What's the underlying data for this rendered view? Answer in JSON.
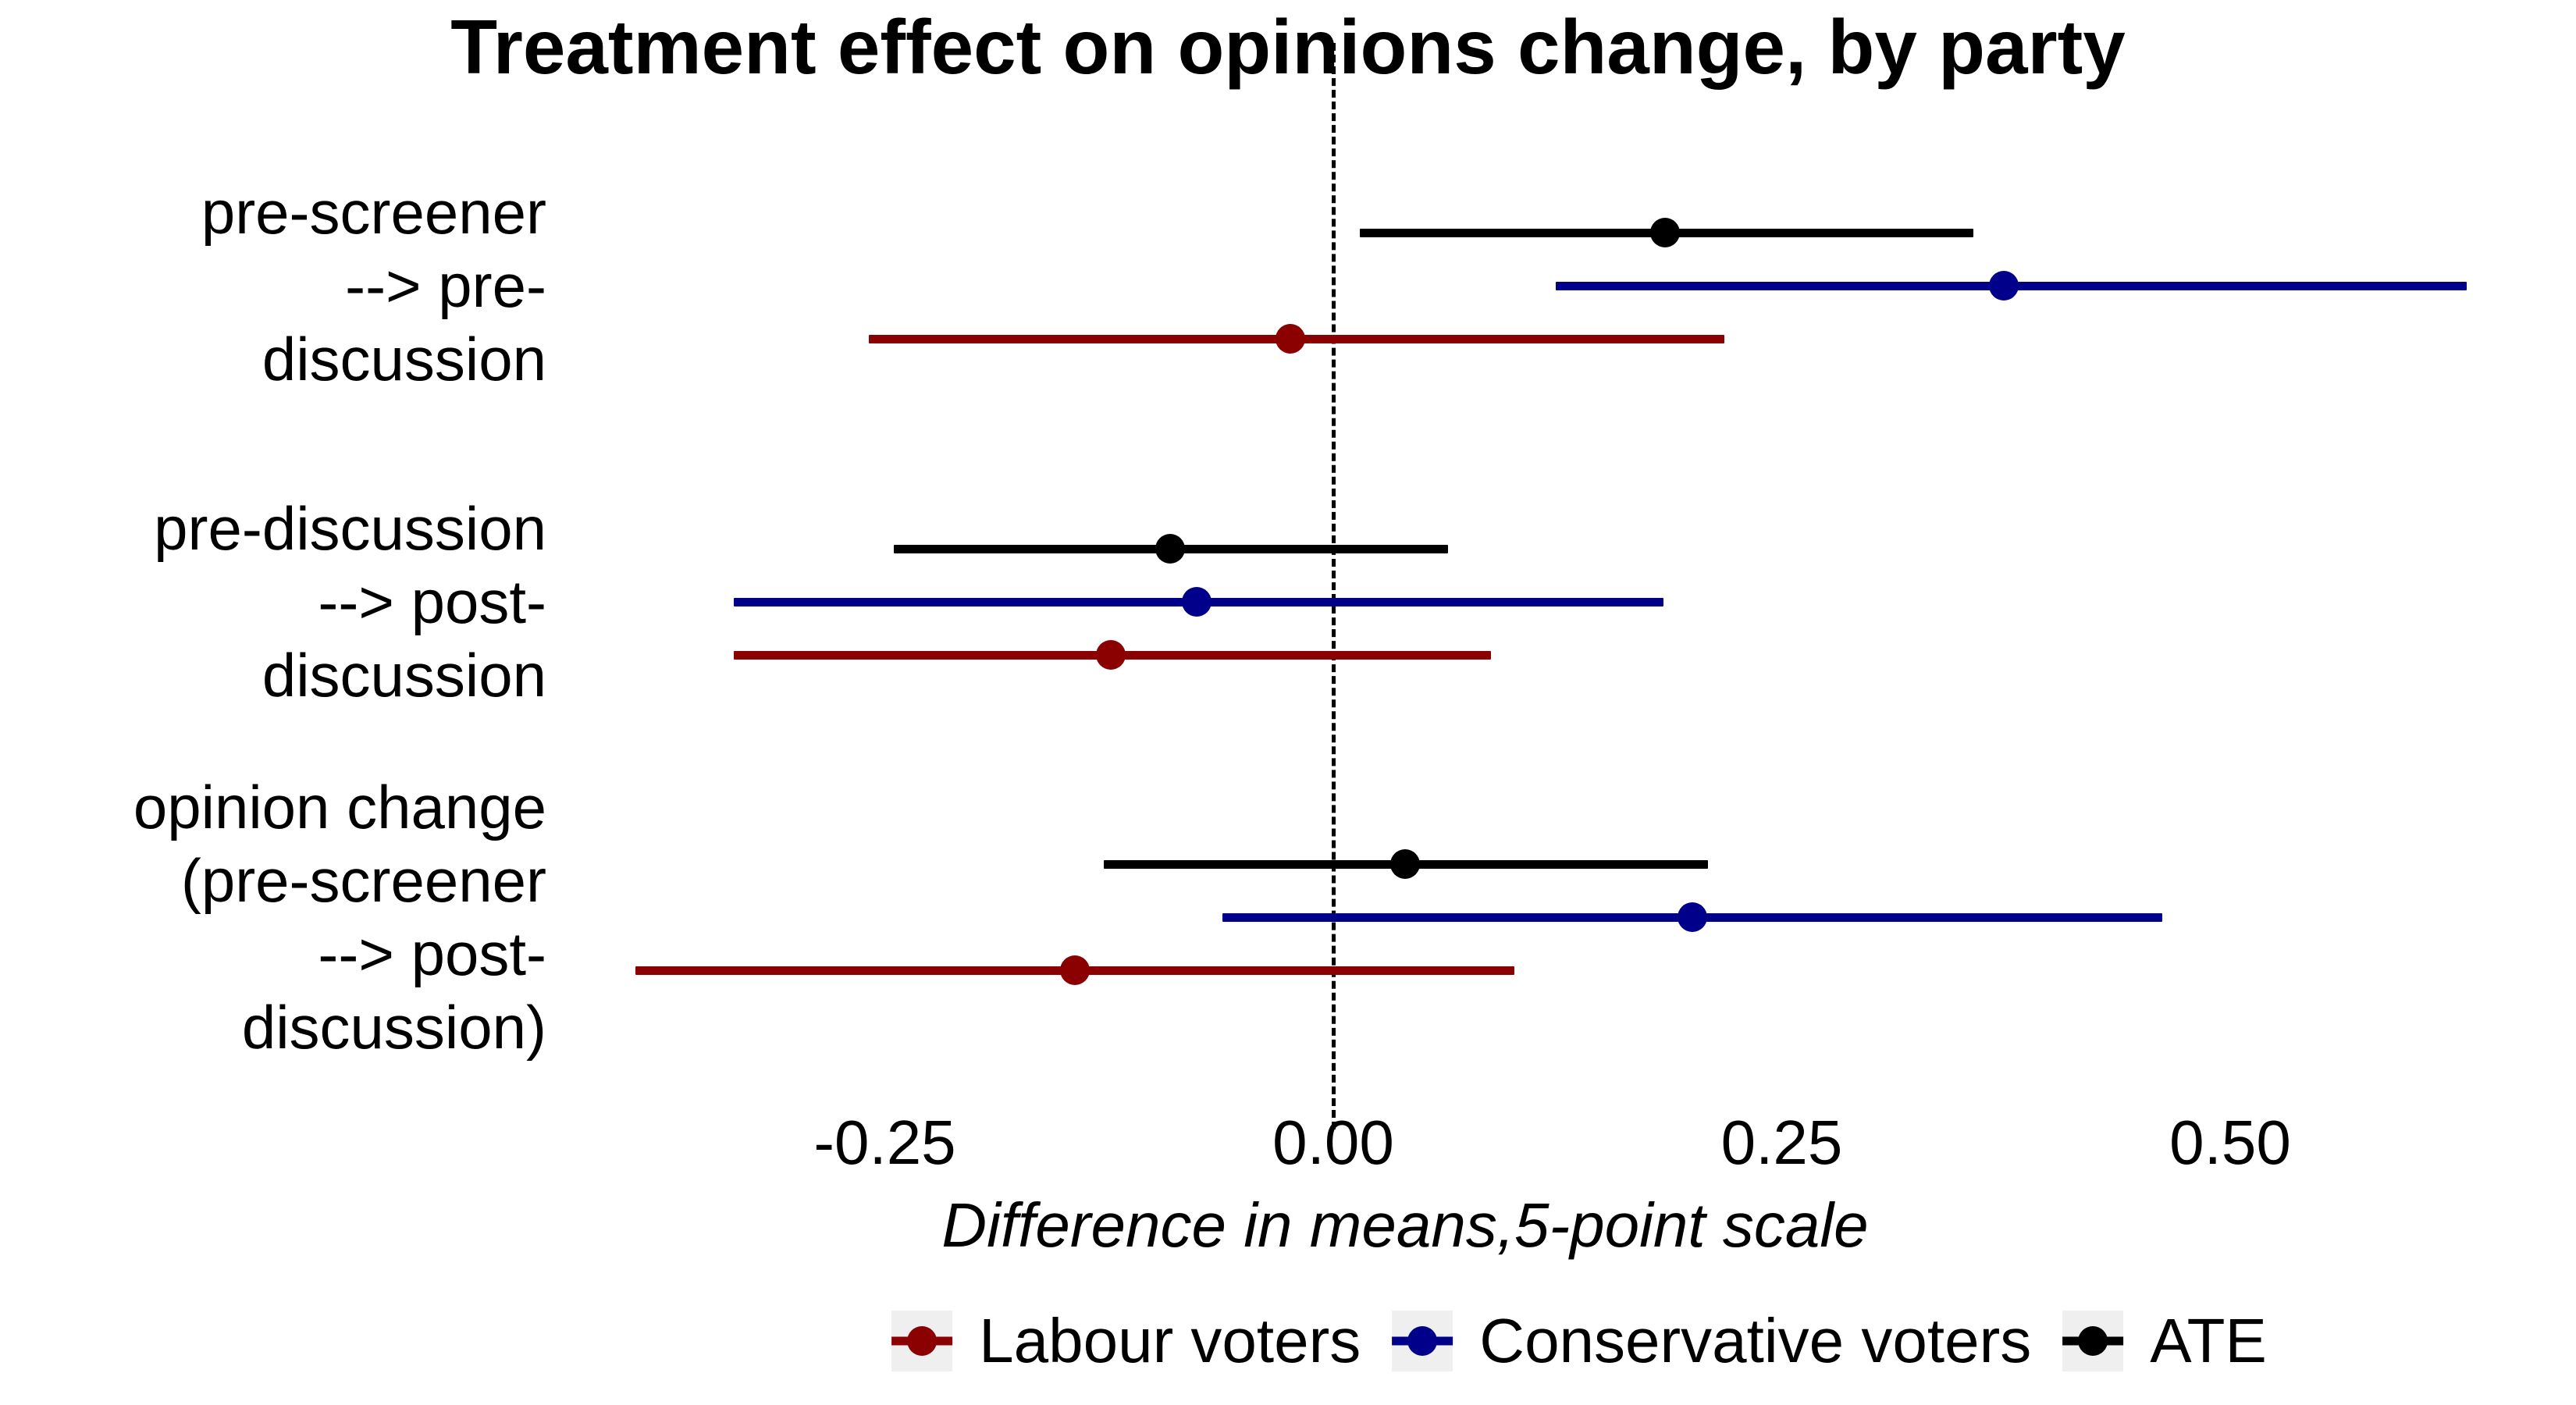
{
  "title": "Treatment effect on opinions change, by party",
  "axis": {
    "xlabel": "Difference in means,5-point scale",
    "ticks": [
      "-0.25",
      "0.00",
      "0.25",
      "0.50"
    ]
  },
  "legend": [
    {
      "label": "Labour voters",
      "color": "#8B0000"
    },
    {
      "label": "Conservative voters",
      "color": "#00008B"
    },
    {
      "label": "ATE",
      "color": "#000000"
    }
  ],
  "chart_data": {
    "type": "scatter",
    "subtype": "pointrange-forest-plot",
    "title": "Treatment effect on opinions change, by party",
    "xlabel": "Difference in means,5-point scale",
    "ylabel": "",
    "xlim": [
      -0.42,
      0.69
    ],
    "x_ticks": [
      -0.25,
      0.0,
      0.25,
      0.5
    ],
    "zero_reference_line": 0.0,
    "grid": "off",
    "legend_position": "bottom",
    "series_order_within_group": [
      "ATE",
      "Conservative voters",
      "Labour voters"
    ],
    "groups": [
      {
        "label": "pre-screener --> pre-discussion",
        "label_lines": [
          "pre-screener",
          "--> pre-",
          "discussion"
        ],
        "estimates": [
          {
            "series": "ATE",
            "color": "#000000",
            "estimate": 0.185,
            "ci_low": 0.015,
            "ci_high": 0.357
          },
          {
            "series": "Conservative voters",
            "color": "#00008B",
            "estimate": 0.374,
            "ci_low": 0.124,
            "ci_high": 0.632
          },
          {
            "series": "Labour voters",
            "color": "#8B0000",
            "estimate": -0.024,
            "ci_low": -0.259,
            "ci_high": 0.218
          }
        ]
      },
      {
        "label": "pre-discussion --> post-discussion",
        "label_lines": [
          "pre-discussion",
          "--> post-",
          "discussion"
        ],
        "estimates": [
          {
            "series": "ATE",
            "color": "#000000",
            "estimate": -0.091,
            "ci_low": -0.245,
            "ci_high": 0.064
          },
          {
            "series": "Conservative voters",
            "color": "#00008B",
            "estimate": -0.076,
            "ci_low": -0.334,
            "ci_high": 0.184
          },
          {
            "series": "Labour voters",
            "color": "#8B0000",
            "estimate": -0.124,
            "ci_low": -0.334,
            "ci_high": 0.088
          }
        ]
      },
      {
        "label": "opinion change (pre-screener --> post-discussion)",
        "label_lines": [
          "opinion change",
          "(pre-screener",
          "--> post-",
          "discussion)"
        ],
        "estimates": [
          {
            "series": "ATE",
            "color": "#000000",
            "estimate": 0.04,
            "ci_low": -0.128,
            "ci_high": 0.209
          },
          {
            "series": "Conservative voters",
            "color": "#00008B",
            "estimate": 0.2,
            "ci_low": -0.062,
            "ci_high": 0.462
          },
          {
            "series": "Labour voters",
            "color": "#8B0000",
            "estimate": -0.144,
            "ci_low": -0.389,
            "ci_high": 0.101
          }
        ]
      }
    ]
  }
}
